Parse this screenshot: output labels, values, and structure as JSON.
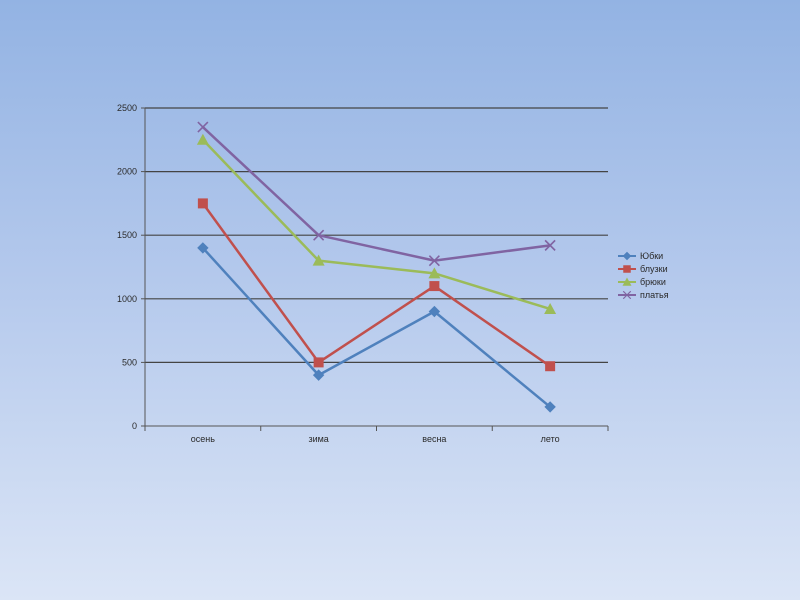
{
  "chart_data": {
    "type": "line",
    "categories": [
      "осень",
      "зима",
      "весна",
      "лето"
    ],
    "ylim": [
      0,
      2500
    ],
    "yticks": [
      0,
      500,
      1000,
      1500,
      2000,
      2500
    ],
    "grid": true,
    "legend_position": "right",
    "series": [
      {
        "name": "Юбки",
        "values": [
          1400,
          400,
          900,
          150
        ],
        "color": "#4f81bd",
        "marker": "diamond"
      },
      {
        "name": "блузки",
        "values": [
          1750,
          500,
          1100,
          470
        ],
        "color": "#c0504d",
        "marker": "square"
      },
      {
        "name": "брюки",
        "values": [
          2250,
          1300,
          1200,
          920
        ],
        "color": "#9bbb59",
        "marker": "triangle"
      },
      {
        "name": "платья",
        "values": [
          2350,
          1500,
          1300,
          1420
        ],
        "color": "#8064a2",
        "marker": "x"
      }
    ]
  }
}
